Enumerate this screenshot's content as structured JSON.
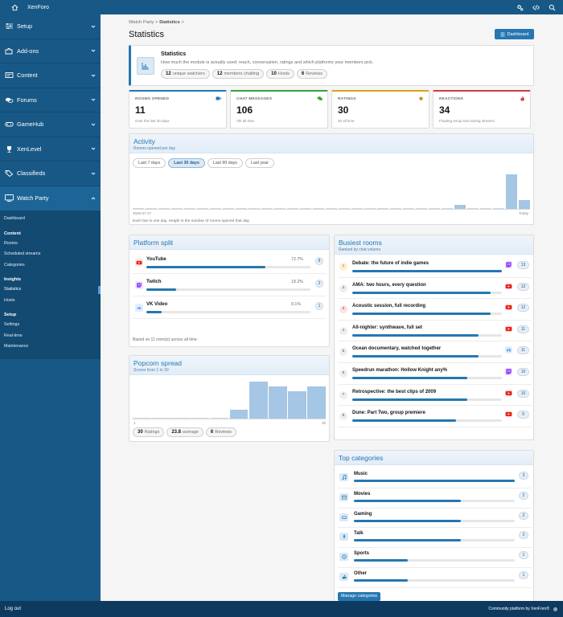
{
  "topbar": {
    "brand": "XenForo"
  },
  "sidebar": {
    "sections": [
      {
        "label": "Setup",
        "icon": "sliders-icon"
      },
      {
        "label": "Add-ons",
        "icon": "puzzle-icon"
      },
      {
        "label": "Content",
        "icon": "content-icon"
      },
      {
        "label": "Forums",
        "icon": "comments-icon"
      },
      {
        "label": "GameHub",
        "icon": "gamepad-icon"
      },
      {
        "label": "XenLevel",
        "icon": "trophy-icon"
      },
      {
        "label": "Classifieds",
        "icon": "tags-icon"
      }
    ],
    "open_section": {
      "label": "Watch Party",
      "icon": "tv-icon"
    },
    "sub": {
      "dashboard": "Dashboard",
      "content_heading": "Content",
      "content_links": [
        "Rooms",
        "Scheduled streams",
        "Categories"
      ],
      "insights_heading": "Insights",
      "insights_links": [
        "Statistics",
        "Hosts"
      ],
      "setup_heading": "Setup",
      "setup_links": [
        "Settings",
        "Real-time",
        "Maintenance"
      ]
    }
  },
  "footer": {
    "logout": "Log out",
    "community": "Community platform by XenForo®"
  },
  "breadcrumb": {
    "parent": "Watch Party",
    "current": "Statistics"
  },
  "page_title": "Statistics",
  "dashboard_button": "Dashboard",
  "intro": {
    "title": "Statistics",
    "description": "How much the module is actually used: reach, conversation, ratings and which platforms your members pick.",
    "pills": [
      {
        "value": "12",
        "label": "unique watchers"
      },
      {
        "value": "12",
        "label": "members chatting"
      },
      {
        "value": "10",
        "label": "Hosts"
      },
      {
        "value": "6",
        "label": "Reviews"
      }
    ]
  },
  "stats": [
    {
      "label": "ROOMS OPENED",
      "value": "11",
      "note": "Over the last 30 days",
      "color": "#2577b1"
    },
    {
      "label": "CHAT MESSAGES",
      "value": "106",
      "note": "Vtk all time",
      "color": "#3aa040"
    },
    {
      "label": "RATINGS",
      "value": "30",
      "note": "30 all time",
      "color": "#d9a31c"
    },
    {
      "label": "REACTIONS",
      "value": "34",
      "note": "Floating emoji sent during streams",
      "color": "#d33c3c"
    }
  ],
  "activity": {
    "title": "Activity",
    "subtitle": "Rooms opened per day",
    "ranges": [
      "Last 7 days",
      "Last 30 days",
      "Last 90 days",
      "Last year"
    ],
    "selected_range": "Last 30 days",
    "start_label": "2026-07-17",
    "end_label": "Today",
    "note": "Each bar is one day. Height is the number of rooms opened that day."
  },
  "platform": {
    "title": "Platform split",
    "rows": [
      {
        "name": "YouTube",
        "percent": "72.7%",
        "share": 0.727,
        "count": "8",
        "icon": "youtube-icon",
        "color": "#e62117"
      },
      {
        "name": "Twitch",
        "percent": "18.2%",
        "share": 0.182,
        "count": "2",
        "icon": "twitch-icon",
        "color": "#9146ff"
      },
      {
        "name": "VK Video",
        "percent": "9.1%",
        "share": 0.091,
        "count": "1",
        "icon": "vk-icon",
        "color": "#2787f5"
      }
    ],
    "note": "Based on 11 room(s) across all time."
  },
  "popcorn": {
    "title": "Popcorn spread",
    "subtitle": "Scores from 1 to 30",
    "lo_label": "1",
    "hi_label": "30",
    "pills": [
      {
        "value": "30",
        "label": "Ratings"
      },
      {
        "value": "23.8",
        "label": "average"
      },
      {
        "value": "6",
        "label": "Reviews"
      }
    ]
  },
  "busiest": {
    "title": "Busiest rooms",
    "subtitle": "Ranked by chat volume",
    "rows": [
      {
        "rank": "1",
        "name": "Debate: the future of indie games",
        "count": "13",
        "value": 13,
        "platform": "twitch"
      },
      {
        "rank": "2",
        "name": "AMA: two hours, every question",
        "count": "12",
        "value": 12,
        "platform": "youtube"
      },
      {
        "rank": "3",
        "name": "Acoustic session, full recording",
        "count": "12",
        "value": 12,
        "platform": "youtube"
      },
      {
        "rank": "4",
        "name": "All-nighter: synthwave, full set",
        "count": "11",
        "value": 11,
        "platform": "youtube"
      },
      {
        "rank": "5",
        "name": "Ocean documentary, watched together",
        "count": "11",
        "value": 11,
        "platform": "vk"
      },
      {
        "rank": "6",
        "name": "Speedrun marathon: Hollow Knight any%",
        "count": "10",
        "value": 10,
        "platform": "twitch"
      },
      {
        "rank": "7",
        "name": "Retrospective: the best clips of 2009",
        "count": "10",
        "value": 10,
        "platform": "youtube"
      },
      {
        "rank": "8",
        "name": "Dune: Part Two, group premiere",
        "count": "9",
        "value": 9,
        "platform": "youtube"
      }
    ]
  },
  "topcats": {
    "title": "Top categories",
    "rows": [
      {
        "name": "Music",
        "count": "3",
        "value": 3,
        "icon": "music-icon"
      },
      {
        "name": "Movies",
        "count": "2",
        "value": 2,
        "icon": "film-icon"
      },
      {
        "name": "Gaming",
        "count": "2",
        "value": 2,
        "icon": "gamepad-icon"
      },
      {
        "name": "Talk",
        "count": "2",
        "value": 2,
        "icon": "microphone-icon"
      },
      {
        "name": "Sports",
        "count": "1",
        "value": 1,
        "icon": "ball-icon"
      },
      {
        "name": "Other",
        "count": "1",
        "value": 1,
        "icon": "shapes-icon"
      }
    ],
    "manage_button": "Manage categories"
  },
  "chart_data": [
    {
      "type": "bar",
      "title": "Activity",
      "subtitle": "Rooms opened per day",
      "x_start": "2026-07-17",
      "x_end": "Today",
      "values": [
        0,
        0,
        0,
        0,
        0,
        0,
        0,
        0,
        0,
        0,
        0,
        0,
        0,
        0,
        0,
        0,
        0,
        0,
        0,
        0,
        0,
        0,
        0,
        0,
        0,
        1,
        0,
        0,
        0,
        8,
        2
      ],
      "ylim": [
        0,
        8
      ]
    },
    {
      "type": "bar",
      "title": "Popcorn spread",
      "subtitle": "Scores from 1 to 30",
      "x_range": [
        1,
        30
      ],
      "values": [
        0,
        0,
        0,
        0,
        0,
        2,
        8,
        7,
        6,
        7
      ],
      "ylim": [
        0,
        8
      ]
    }
  ],
  "colors": {
    "accent": "#2577b1",
    "topbar": "#185886",
    "sidebar_sub": "#124a72",
    "bar": "#a5c6e4"
  }
}
